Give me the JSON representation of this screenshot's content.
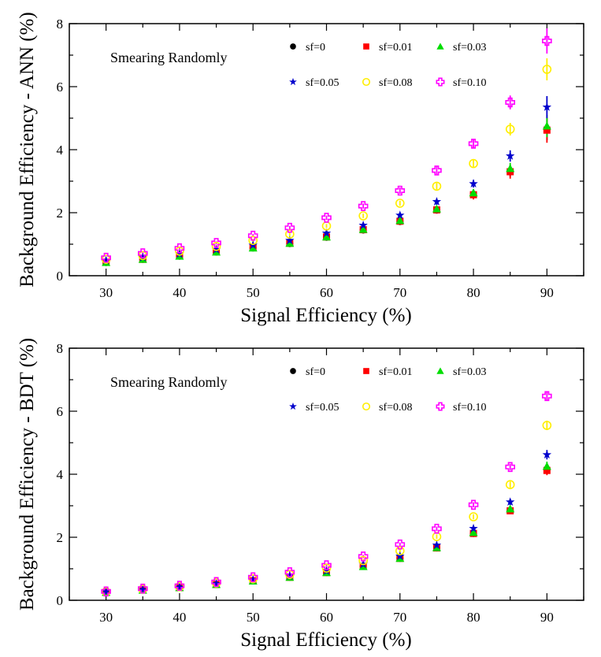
{
  "chart_data": [
    {
      "type": "scatter",
      "title": "",
      "annotation": "Smearing Randomly",
      "xlabel": "Signal Efficiency (%)",
      "ylabel": "Background Efficiency - ANN (%)",
      "xlim": [
        25,
        95
      ],
      "ylim": [
        0,
        8
      ],
      "x_ticks": [
        30,
        40,
        50,
        60,
        70,
        80,
        90
      ],
      "y_ticks": [
        0,
        2,
        4,
        6,
        8
      ],
      "grid": false,
      "legend_position": "top",
      "x": [
        30,
        35,
        40,
        45,
        50,
        55,
        60,
        65,
        70,
        75,
        80,
        85,
        90
      ],
      "series": [
        {
          "name": "sf=0",
          "marker": "circle",
          "color": "#000000",
          "values": [
            0.42,
            0.52,
            0.62,
            0.75,
            0.88,
            1.02,
            1.22,
            1.45,
            1.72,
            2.08,
            2.58,
            3.32,
            4.65
          ],
          "errors": [
            0.03,
            0.03,
            0.04,
            0.04,
            0.05,
            0.05,
            0.06,
            0.07,
            0.08,
            0.1,
            0.12,
            0.18,
            0.35
          ]
        },
        {
          "name": "sf=0.01",
          "marker": "square",
          "color": "#ff0000",
          "values": [
            0.43,
            0.52,
            0.63,
            0.76,
            0.89,
            1.03,
            1.23,
            1.46,
            1.73,
            2.09,
            2.57,
            3.3,
            4.62
          ],
          "errors": [
            0.03,
            0.03,
            0.04,
            0.04,
            0.05,
            0.05,
            0.06,
            0.07,
            0.08,
            0.1,
            0.15,
            0.22,
            0.4
          ]
        },
        {
          "name": "sf=0.03",
          "marker": "triangle",
          "color": "#00dd00",
          "values": [
            0.42,
            0.52,
            0.62,
            0.75,
            0.88,
            1.03,
            1.23,
            1.47,
            1.75,
            2.12,
            2.63,
            3.4,
            4.75
          ],
          "errors": [
            0.03,
            0.03,
            0.04,
            0.04,
            0.05,
            0.05,
            0.06,
            0.07,
            0.08,
            0.1,
            0.12,
            0.18,
            0.35
          ]
        },
        {
          "name": "sf=0.05",
          "marker": "star",
          "color": "#0000cc",
          "values": [
            0.48,
            0.58,
            0.69,
            0.83,
            0.97,
            1.12,
            1.35,
            1.6,
            1.92,
            2.35,
            2.92,
            3.8,
            5.35
          ],
          "errors": [
            0.03,
            0.03,
            0.04,
            0.04,
            0.05,
            0.05,
            0.06,
            0.07,
            0.08,
            0.1,
            0.12,
            0.18,
            0.35
          ]
        },
        {
          "name": "sf=0.08",
          "marker": "open-circle",
          "color": "#ffee00",
          "values": [
            0.52,
            0.64,
            0.78,
            0.93,
            1.12,
            1.32,
            1.58,
            1.9,
            2.3,
            2.84,
            3.56,
            4.65,
            6.55
          ],
          "errors": [
            0.03,
            0.03,
            0.04,
            0.04,
            0.05,
            0.06,
            0.06,
            0.07,
            0.08,
            0.1,
            0.12,
            0.2,
            0.35
          ]
        },
        {
          "name": "sf=0.10",
          "marker": "open-cross",
          "color": "#ff00ff",
          "values": [
            0.57,
            0.71,
            0.87,
            1.04,
            1.27,
            1.52,
            1.84,
            2.21,
            2.7,
            3.34,
            4.19,
            5.5,
            7.45
          ],
          "errors": [
            0.03,
            0.03,
            0.04,
            0.05,
            0.05,
            0.06,
            0.07,
            0.08,
            0.1,
            0.12,
            0.15,
            0.22,
            0.4
          ]
        }
      ]
    },
    {
      "type": "scatter",
      "title": "",
      "annotation": "Smearing Randomly",
      "xlabel": "Signal Efficiency (%)",
      "ylabel": "Background Efficiency - BDT (%)",
      "xlim": [
        25,
        95
      ],
      "ylim": [
        0,
        8
      ],
      "x_ticks": [
        30,
        40,
        50,
        60,
        70,
        80,
        90
      ],
      "y_ticks": [
        0,
        2,
        4,
        6,
        8
      ],
      "grid": false,
      "legend_position": "top",
      "x": [
        30,
        35,
        40,
        45,
        50,
        55,
        60,
        65,
        70,
        75,
        80,
        85,
        90
      ],
      "series": [
        {
          "name": "sf=0",
          "marker": "circle",
          "color": "#000000",
          "values": [
            0.25,
            0.33,
            0.4,
            0.5,
            0.62,
            0.73,
            0.88,
            1.08,
            1.33,
            1.66,
            2.12,
            2.85,
            4.15
          ],
          "errors": [
            0.02,
            0.02,
            0.03,
            0.03,
            0.03,
            0.04,
            0.04,
            0.05,
            0.06,
            0.07,
            0.08,
            0.1,
            0.15
          ]
        },
        {
          "name": "sf=0.01",
          "marker": "square",
          "color": "#ff0000",
          "values": [
            0.25,
            0.33,
            0.4,
            0.5,
            0.62,
            0.73,
            0.88,
            1.08,
            1.33,
            1.66,
            2.12,
            2.84,
            4.12
          ],
          "errors": [
            0.02,
            0.02,
            0.03,
            0.03,
            0.03,
            0.04,
            0.04,
            0.05,
            0.06,
            0.07,
            0.08,
            0.1,
            0.15
          ]
        },
        {
          "name": "sf=0.03",
          "marker": "triangle",
          "color": "#00dd00",
          "values": [
            0.25,
            0.32,
            0.4,
            0.5,
            0.61,
            0.73,
            0.88,
            1.07,
            1.33,
            1.67,
            2.15,
            2.9,
            4.25
          ],
          "errors": [
            0.02,
            0.02,
            0.03,
            0.03,
            0.03,
            0.04,
            0.04,
            0.05,
            0.06,
            0.07,
            0.08,
            0.1,
            0.15
          ]
        },
        {
          "name": "sf=0.05",
          "marker": "star",
          "color": "#0000cc",
          "values": [
            0.27,
            0.34,
            0.42,
            0.53,
            0.65,
            0.77,
            0.93,
            1.14,
            1.4,
            1.75,
            2.28,
            3.12,
            4.62
          ],
          "errors": [
            0.02,
            0.02,
            0.03,
            0.03,
            0.03,
            0.04,
            0.04,
            0.05,
            0.06,
            0.07,
            0.08,
            0.1,
            0.15
          ]
        },
        {
          "name": "sf=0.08",
          "marker": "open-circle",
          "color": "#ffee00",
          "values": [
            0.27,
            0.35,
            0.43,
            0.55,
            0.68,
            0.82,
            1.02,
            1.26,
            1.57,
            2.02,
            2.65,
            3.67,
            5.55
          ],
          "errors": [
            0.02,
            0.02,
            0.03,
            0.03,
            0.03,
            0.04,
            0.04,
            0.05,
            0.06,
            0.07,
            0.08,
            0.1,
            0.15
          ]
        },
        {
          "name": "sf=0.10",
          "marker": "open-cross",
          "color": "#ff00ff",
          "values": [
            0.28,
            0.37,
            0.46,
            0.58,
            0.73,
            0.89,
            1.11,
            1.39,
            1.77,
            2.27,
            3.03,
            4.23,
            6.48
          ],
          "errors": [
            0.02,
            0.02,
            0.03,
            0.03,
            0.03,
            0.04,
            0.04,
            0.05,
            0.06,
            0.07,
            0.08,
            0.1,
            0.15
          ]
        }
      ]
    }
  ]
}
